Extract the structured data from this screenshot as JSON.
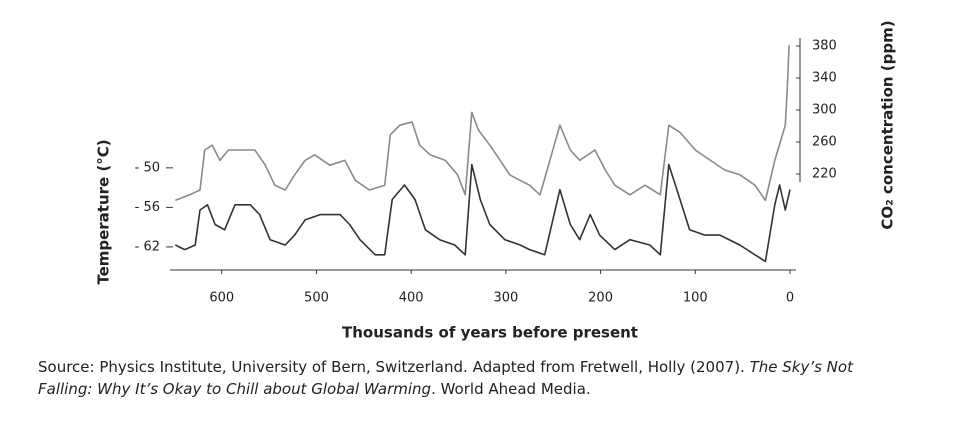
{
  "chart_data": {
    "type": "line",
    "xlabel": "Thousands of years before present",
    "ylabel": "Temperature (°C)",
    "y2label": "CO₂ concentration (ppm)",
    "xlim": [
      650,
      0
    ],
    "xticks": [
      600,
      500,
      400,
      300,
      200,
      100,
      0
    ],
    "ylim": [
      -65.5,
      -30.6
    ],
    "yticks": [
      {
        "value": -50,
        "label": "- 50"
      },
      {
        "value": -56,
        "label": "- 56"
      },
      {
        "value": -62,
        "label": "- 62"
      }
    ],
    "y2lim": [
      100,
      387.5
    ],
    "y2ticks": [
      380,
      340,
      300,
      260,
      220
    ],
    "series": [
      {
        "color": "#8a8a8a",
        "axis": "y2",
        "x": [
          649,
          634,
          623,
          618,
          610,
          602,
          593,
          581,
          565,
          554,
          544,
          533,
          523,
          512,
          502,
          486,
          470,
          459,
          444,
          428,
          422,
          412,
          399,
          391,
          380,
          364,
          351,
          343,
          336,
          329,
          317,
          306,
          296,
          285,
          275,
          264,
          243,
          232,
          222,
          206,
          195,
          185,
          169,
          153,
          137,
          128,
          116,
          100,
          84,
          69,
          53,
          37,
          26,
          16,
          5,
          3,
          1
        ],
        "values": [
          187,
          194,
          200,
          250,
          256,
          237,
          250,
          250,
          250,
          231,
          206,
          200,
          219,
          237,
          244,
          231,
          237,
          212,
          200,
          206,
          269,
          281,
          285,
          256,
          244,
          237,
          219,
          194,
          297,
          275,
          256,
          237,
          219,
          212,
          206,
          194,
          281,
          250,
          237,
          250,
          225,
          206,
          194,
          206,
          194,
          281,
          272,
          250,
          237,
          225,
          219,
          206,
          187,
          237,
          281,
          325,
          381
        ]
      },
      {
        "color": "#333333",
        "axis": "y",
        "x": [
          649,
          639,
          628,
          623,
          615,
          607,
          597,
          586,
          570,
          560,
          549,
          533,
          523,
          512,
          496,
          475,
          465,
          454,
          438,
          428,
          420,
          407,
          396,
          385,
          370,
          354,
          343,
          336,
          327,
          317,
          301,
          285,
          275,
          259,
          243,
          232,
          222,
          211,
          201,
          185,
          169,
          148,
          137,
          128,
          121,
          106,
          90,
          74,
          53,
          37,
          26,
          16,
          11,
          5,
          0
        ],
        "values": [
          -61.7,
          -62.4,
          -61.7,
          -56.4,
          -55.6,
          -58.6,
          -59.4,
          -55.6,
          -55.6,
          -57.1,
          -60.9,
          -61.7,
          -60.2,
          -57.9,
          -57.1,
          -57.1,
          -58.6,
          -60.9,
          -63.2,
          -63.2,
          -54.8,
          -52.6,
          -54.8,
          -59.4,
          -60.9,
          -61.7,
          -63.2,
          -49.5,
          -54.8,
          -58.6,
          -60.9,
          -61.7,
          -62.4,
          -63.2,
          -53.3,
          -58.6,
          -60.9,
          -57.1,
          -60.2,
          -62.4,
          -60.9,
          -61.7,
          -63.2,
          -49.5,
          -52.6,
          -59.4,
          -60.2,
          -60.2,
          -61.7,
          -63.2,
          -64.2,
          -55.6,
          -52.6,
          -56.4,
          -53.3
        ]
      }
    ],
    "source": [
      "Source:  Physics Institute, University of Bern, Switzerland. Adapted from Fretwell, Holly (2007). ",
      "The Sky’s Not Falling: Why It’s Okay to Chill about Global Warming",
      ". World Ahead Media."
    ]
  }
}
